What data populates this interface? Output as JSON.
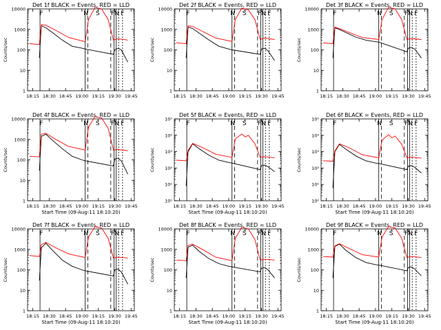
{
  "figure": {
    "ylabel": "Counts/sec",
    "xlabel": "Start Time (09-Aug-11 18:10:20)",
    "x_ticks": [
      "18:15",
      "18:30",
      "18:45",
      "19:00",
      "19:15",
      "19:30",
      "19:45"
    ],
    "y_ticks_decades": [
      "1",
      "10",
      "100",
      "1000",
      "10000"
    ],
    "y_ticks_exponent": [
      "10⁰",
      "10¹",
      "10²",
      "10³",
      "10⁴",
      "10⁵"
    ],
    "series_colors": {
      "events": "#000000",
      "lld": "#ff0000"
    },
    "marker_letters": [
      "F",
      "N",
      "S",
      "F",
      "N",
      "F"
    ]
  },
  "chart_data": [
    {
      "type": "line",
      "title": "Det 1f BLACK = Events, RED = LLD",
      "ylim": [
        1,
        10000
      ],
      "tick_style": "decades",
      "xlabel": "",
      "series": [
        {
          "name": "Events",
          "color": "#000000",
          "x": [
            18.35,
            18.38,
            18.45,
            18.55,
            18.7,
            18.85,
            19.0,
            19.05,
            19.48,
            19.5,
            19.55,
            19.6,
            19.7
          ],
          "values": [
            40,
            1500,
            1200,
            700,
            300,
            150,
            120,
            110,
            60,
            100,
            120,
            100,
            25
          ]
        },
        {
          "name": "LLD",
          "color": "#ff0000",
          "x": [
            18.2,
            18.35,
            18.38,
            18.45,
            18.6,
            18.8,
            19.05,
            19.1,
            19.2,
            19.3,
            19.4,
            19.48,
            19.55,
            19.7
          ],
          "values": [
            200,
            180,
            1700,
            1600,
            900,
            400,
            250,
            3000,
            12000,
            10000,
            3000,
            300,
            350,
            300
          ]
        }
      ]
    },
    {
      "type": "line",
      "title": "Det 2f BLACK = Events, RED = LLD",
      "ylim": [
        1,
        10000
      ],
      "tick_style": "decades",
      "xlabel": "",
      "series": [
        {
          "name": "Events",
          "color": "#000000",
          "x": [
            18.35,
            18.38,
            18.45,
            18.55,
            18.7,
            18.85,
            19.0,
            19.05,
            19.48,
            19.5,
            19.55,
            19.6,
            19.7
          ],
          "values": [
            40,
            1300,
            1100,
            650,
            300,
            150,
            110,
            100,
            60,
            110,
            120,
            90,
            30
          ]
        },
        {
          "name": "LLD",
          "color": "#ff0000",
          "x": [
            18.2,
            18.35,
            18.38,
            18.45,
            18.6,
            18.8,
            19.05,
            19.1,
            19.2,
            19.3,
            19.4,
            19.48,
            19.55,
            19.7
          ],
          "values": [
            220,
            200,
            1500,
            1400,
            800,
            380,
            260,
            3000,
            11000,
            9000,
            3000,
            320,
            380,
            320
          ]
        }
      ]
    },
    {
      "type": "line",
      "title": "Det 3f BLACK = Events, RED = LLD",
      "ylim": [
        1,
        10000
      ],
      "tick_style": "decades",
      "xlabel": "",
      "series": [
        {
          "name": "Events",
          "color": "#000000",
          "x": [
            18.35,
            18.38,
            18.45,
            18.55,
            18.7,
            18.85,
            19.0,
            19.05,
            19.48,
            19.5,
            19.55,
            19.6,
            19.7
          ],
          "values": [
            40,
            1200,
            1000,
            700,
            420,
            300,
            250,
            240,
            80,
            120,
            130,
            110,
            40
          ]
        },
        {
          "name": "LLD",
          "color": "#ff0000",
          "x": [
            18.2,
            18.35,
            18.38,
            18.45,
            18.6,
            18.8,
            19.05,
            19.1,
            19.2,
            19.3,
            19.4,
            19.48,
            19.55,
            19.7
          ],
          "values": [
            220,
            200,
            1300,
            1100,
            700,
            400,
            320,
            3000,
            12000,
            10000,
            3000,
            320,
            360,
            320
          ]
        }
      ]
    },
    {
      "type": "line",
      "title": "Det 4f BLACK = Events, RED = LLD",
      "ylim": [
        1,
        10000
      ],
      "tick_style": "decades",
      "xlabel": "Start Time (09-Aug-11 18:10:20)",
      "series": [
        {
          "name": "Events",
          "color": "#000000",
          "x": [
            18.35,
            18.38,
            18.45,
            18.55,
            18.7,
            18.85,
            19.0,
            19.05,
            19.48,
            19.5,
            19.55,
            19.6,
            19.7
          ],
          "values": [
            30,
            1400,
            1800,
            900,
            350,
            150,
            100,
            90,
            50,
            110,
            120,
            90,
            20
          ]
        },
        {
          "name": "LLD",
          "color": "#ff0000",
          "x": [
            18.2,
            18.35,
            18.38,
            18.45,
            18.6,
            18.8,
            19.05,
            19.1,
            19.2,
            19.3,
            19.4,
            19.48,
            19.55,
            19.7
          ],
          "values": [
            150,
            140,
            1800,
            2000,
            1000,
            450,
            300,
            4000,
            13000,
            11000,
            3500,
            300,
            320,
            280
          ]
        }
      ]
    },
    {
      "type": "line",
      "title": "Det 5f BLACK = Events, RED = LLD",
      "ylim": [
        1,
        100000
      ],
      "tick_style": "exponent",
      "xlabel": "Start Time (09-Aug-11 18:10:20)",
      "series": [
        {
          "name": "Events",
          "color": "#000000",
          "x": [
            18.35,
            18.38,
            18.45,
            18.55,
            18.7,
            18.85,
            19.0,
            19.05,
            19.48,
            19.5,
            19.55,
            19.6,
            19.7
          ],
          "values": [
            8,
            1000,
            3000,
            1500,
            600,
            300,
            220,
            200,
            80,
            140,
            150,
            120,
            60
          ]
        },
        {
          "name": "LLD",
          "color": "#ff0000",
          "x": [
            18.2,
            18.35,
            18.38,
            18.45,
            18.6,
            18.8,
            19.05,
            19.1,
            19.2,
            19.25,
            19.3,
            19.4,
            19.48,
            19.55,
            19.7
          ],
          "values": [
            300,
            280,
            1200,
            3200,
            1800,
            700,
            450,
            6000,
            12000,
            8000,
            10000,
            3000,
            450,
            500,
            420
          ]
        }
      ]
    },
    {
      "type": "line",
      "title": "Det 6f BLACK = Events, RED = LLD",
      "ylim": [
        1,
        100000
      ],
      "tick_style": "exponent",
      "xlabel": "Start Time (09-Aug-11 18:10:20)",
      "series": [
        {
          "name": "Events",
          "color": "#000000",
          "x": [
            18.35,
            18.38,
            18.45,
            18.55,
            18.7,
            18.85,
            19.0,
            19.05,
            19.48,
            19.5,
            19.55,
            19.6,
            19.7
          ],
          "values": [
            6,
            1000,
            2800,
            1400,
            550,
            280,
            200,
            190,
            80,
            130,
            140,
            110,
            50
          ]
        },
        {
          "name": "LLD",
          "color": "#ff0000",
          "x": [
            18.2,
            18.35,
            18.38,
            18.45,
            18.6,
            18.8,
            19.05,
            19.1,
            19.2,
            19.25,
            19.3,
            19.4,
            19.48,
            19.55,
            19.7
          ],
          "values": [
            280,
            260,
            1100,
            3000,
            1700,
            650,
            420,
            5000,
            11000,
            7000,
            9000,
            2800,
            420,
            460,
            400
          ]
        }
      ]
    },
    {
      "type": "line",
      "title": "Det 7f BLACK = Events, RED = LLD",
      "ylim": [
        1,
        10000
      ],
      "tick_style": "decades",
      "xlabel": "Start Time (09-Aug-11 18:10:20)",
      "series": [
        {
          "name": "Events",
          "color": "#000000",
          "x": [
            18.35,
            18.38,
            18.45,
            18.55,
            18.7,
            18.85,
            19.0,
            19.05,
            19.48,
            19.5,
            19.55,
            19.6,
            19.7
          ],
          "values": [
            30,
            1200,
            2000,
            900,
            300,
            150,
            100,
            90,
            50,
            100,
            110,
            80,
            20
          ]
        },
        {
          "name": "LLD",
          "color": "#ff0000",
          "x": [
            18.2,
            18.35,
            18.38,
            18.45,
            18.6,
            18.8,
            19.05,
            19.1,
            19.2,
            19.3,
            19.4,
            19.48,
            19.55,
            19.7
          ],
          "values": [
            500,
            450,
            1700,
            2200,
            1200,
            600,
            400,
            4000,
            13000,
            11000,
            3500,
            380,
            420,
            380
          ]
        }
      ]
    },
    {
      "type": "line",
      "title": "Det 8f BLACK = Events, RED = LLD",
      "ylim": [
        1,
        10000
      ],
      "tick_style": "decades",
      "xlabel": "Start Time (09-Aug-11 18:10:20)",
      "series": [
        {
          "name": "Events",
          "color": "#000000",
          "x": [
            18.35,
            18.38,
            18.45,
            18.55,
            18.7,
            18.85,
            19.0,
            19.05,
            19.48,
            19.5,
            19.55,
            19.6,
            19.7
          ],
          "values": [
            40,
            1300,
            1600,
            800,
            350,
            200,
            150,
            140,
            80,
            120,
            130,
            100,
            40
          ]
        },
        {
          "name": "LLD",
          "color": "#ff0000",
          "x": [
            18.2,
            18.35,
            18.38,
            18.45,
            18.6,
            18.8,
            19.05,
            19.1,
            19.2,
            19.3,
            19.4,
            19.48,
            19.55,
            19.7
          ],
          "values": [
            300,
            280,
            1600,
            1800,
            1000,
            420,
            280,
            3500,
            12000,
            10000,
            3000,
            300,
            330,
            300
          ]
        }
      ]
    },
    {
      "type": "line",
      "title": "Det 9f BLACK = Events, RED = LLD",
      "ylim": [
        1,
        10000
      ],
      "tick_style": "decades",
      "xlabel": "Start Time (09-Aug-11 18:10:20)",
      "series": [
        {
          "name": "Events",
          "color": "#000000",
          "x": [
            18.35,
            18.38,
            18.45,
            18.55,
            18.7,
            18.85,
            19.0,
            19.05,
            19.48,
            19.5,
            19.55,
            19.6,
            19.7
          ],
          "values": [
            40,
            1400,
            1800,
            900,
            400,
            230,
            180,
            170,
            90,
            130,
            140,
            110,
            50
          ]
        },
        {
          "name": "LLD",
          "color": "#ff0000",
          "x": [
            18.2,
            18.35,
            18.38,
            18.45,
            18.6,
            18.8,
            19.05,
            19.1,
            19.2,
            19.3,
            19.4,
            19.48,
            19.55,
            19.7
          ],
          "values": [
            450,
            420,
            1500,
            1900,
            1100,
            550,
            420,
            4000,
            13000,
            11000,
            3500,
            400,
            450,
            400
          ]
        }
      ]
    }
  ]
}
